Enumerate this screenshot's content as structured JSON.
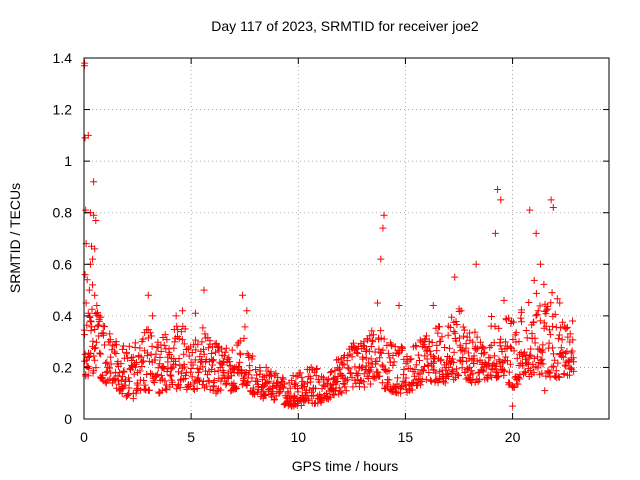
{
  "chart_data": {
    "type": "scatter",
    "title": "Day 117 of 2023, SRMTID for receiver joe2",
    "xlabel": "GPS time / hours",
    "ylabel": "SRMTID / TECUs",
    "xlim": [
      0,
      24.5
    ],
    "ylim": [
      0,
      1.4
    ],
    "grid": true,
    "x_ticks": [
      0,
      5,
      10,
      15,
      20
    ],
    "x_tick_labels": [
      "0",
      "5",
      "10",
      "15",
      "20"
    ],
    "y_ticks": [
      0,
      0.2,
      0.4,
      0.6,
      0.8,
      1.0,
      1.2,
      1.4
    ],
    "y_tick_labels": [
      "0",
      "0.2",
      "0.4",
      "0.6",
      "0.8",
      "1",
      "1.2",
      "1.4"
    ],
    "marker": "+",
    "color": "#ff0000",
    "series": [
      {
        "name": "SRMTID",
        "points": [
          [
            0.02,
            1.37
          ],
          [
            0.03,
            1.38
          ],
          [
            0.05,
            1.09
          ],
          [
            0.2,
            1.1
          ],
          [
            0.45,
            0.92
          ],
          [
            0.08,
            0.81
          ],
          [
            0.3,
            0.8
          ],
          [
            0.45,
            0.79
          ],
          [
            0.55,
            0.77
          ],
          [
            0.1,
            0.68
          ],
          [
            0.35,
            0.67
          ],
          [
            0.5,
            0.66
          ],
          [
            0.4,
            0.62
          ],
          [
            0.3,
            0.6
          ],
          [
            0.05,
            0.56
          ],
          [
            0.15,
            0.54
          ],
          [
            0.4,
            0.52
          ],
          [
            0.25,
            0.5
          ],
          [
            0.5,
            0.48
          ],
          [
            0.1,
            0.45
          ],
          [
            0.6,
            0.44
          ],
          [
            0.2,
            0.41
          ],
          [
            0.7,
            0.4
          ],
          [
            0.3,
            0.38
          ],
          [
            0.9,
            0.36
          ],
          [
            1.2,
            0.33
          ],
          [
            1.5,
            0.3
          ],
          [
            1.8,
            0.27
          ],
          [
            2.1,
            0.12
          ],
          [
            2.3,
            0.08
          ],
          [
            2.7,
            0.22
          ],
          [
            3.0,
            0.48
          ],
          [
            3.2,
            0.4
          ],
          [
            3.5,
            0.1
          ],
          [
            4.0,
            0.25
          ],
          [
            4.3,
            0.4
          ],
          [
            4.6,
            0.42
          ],
          [
            5.0,
            0.22
          ],
          [
            5.2,
            0.41
          ],
          [
            5.6,
            0.5
          ],
          [
            6.0,
            0.28
          ],
          [
            6.5,
            0.22
          ],
          [
            7.0,
            0.18
          ],
          [
            7.4,
            0.48
          ],
          [
            7.6,
            0.42
          ],
          [
            7.9,
            0.12
          ],
          [
            8.5,
            0.2
          ],
          [
            9.0,
            0.14
          ],
          [
            9.5,
            0.08
          ],
          [
            9.8,
            0.05
          ],
          [
            10.2,
            0.12
          ],
          [
            10.6,
            0.2
          ],
          [
            11.0,
            0.08
          ],
          [
            11.5,
            0.18
          ],
          [
            12.0,
            0.22
          ],
          [
            12.5,
            0.28
          ],
          [
            13.0,
            0.24
          ],
          [
            13.4,
            0.2
          ],
          [
            13.7,
            0.45
          ],
          [
            13.85,
            0.62
          ],
          [
            13.95,
            0.74
          ],
          [
            14.0,
            0.79
          ],
          [
            14.3,
            0.22
          ],
          [
            14.7,
            0.44
          ],
          [
            15.0,
            0.14
          ],
          [
            15.5,
            0.28
          ],
          [
            15.9,
            0.3
          ],
          [
            16.3,
            0.44
          ],
          [
            16.6,
            0.3
          ],
          [
            17.0,
            0.36
          ],
          [
            17.3,
            0.55
          ],
          [
            17.6,
            0.42
          ],
          [
            18.0,
            0.2
          ],
          [
            18.3,
            0.6
          ],
          [
            18.6,
            0.28
          ],
          [
            19.0,
            0.36
          ],
          [
            19.2,
            0.72
          ],
          [
            19.3,
            0.89
          ],
          [
            19.45,
            0.85
          ],
          [
            19.6,
            0.46
          ],
          [
            20.0,
            0.05
          ],
          [
            20.3,
            0.3
          ],
          [
            20.6,
            0.18
          ],
          [
            20.8,
            0.81
          ],
          [
            21.1,
            0.72
          ],
          [
            21.3,
            0.6
          ],
          [
            21.5,
            0.11
          ],
          [
            21.8,
            0.85
          ],
          [
            21.9,
            0.82
          ],
          [
            22.2,
            0.45
          ],
          [
            22.5,
            0.22
          ],
          [
            22.8,
            0.38
          ]
        ],
        "band": [
          [
            0.0,
            0.16,
            0.42
          ],
          [
            0.5,
            0.18,
            0.44
          ],
          [
            1.0,
            0.14,
            0.36
          ],
          [
            1.5,
            0.12,
            0.3
          ],
          [
            2.0,
            0.08,
            0.28
          ],
          [
            2.5,
            0.1,
            0.3
          ],
          [
            3.0,
            0.11,
            0.36
          ],
          [
            3.5,
            0.1,
            0.32
          ],
          [
            4.0,
            0.11,
            0.34
          ],
          [
            4.5,
            0.12,
            0.38
          ],
          [
            5.0,
            0.11,
            0.34
          ],
          [
            5.5,
            0.12,
            0.36
          ],
          [
            6.0,
            0.1,
            0.3
          ],
          [
            6.5,
            0.1,
            0.3
          ],
          [
            7.0,
            0.11,
            0.3
          ],
          [
            7.5,
            0.14,
            0.4
          ],
          [
            8.0,
            0.08,
            0.2
          ],
          [
            8.5,
            0.08,
            0.2
          ],
          [
            9.0,
            0.07,
            0.18
          ],
          [
            9.5,
            0.05,
            0.16
          ],
          [
            10.0,
            0.05,
            0.18
          ],
          [
            10.5,
            0.06,
            0.2
          ],
          [
            11.0,
            0.06,
            0.2
          ],
          [
            11.5,
            0.08,
            0.22
          ],
          [
            12.0,
            0.1,
            0.26
          ],
          [
            12.5,
            0.12,
            0.3
          ],
          [
            13.0,
            0.12,
            0.3
          ],
          [
            13.5,
            0.14,
            0.36
          ],
          [
            14.0,
            0.12,
            0.34
          ],
          [
            14.5,
            0.1,
            0.3
          ],
          [
            15.0,
            0.1,
            0.28
          ],
          [
            15.5,
            0.12,
            0.3
          ],
          [
            16.0,
            0.14,
            0.34
          ],
          [
            16.5,
            0.14,
            0.36
          ],
          [
            17.0,
            0.14,
            0.38
          ],
          [
            17.5,
            0.16,
            0.44
          ],
          [
            18.0,
            0.14,
            0.34
          ],
          [
            18.5,
            0.14,
            0.34
          ],
          [
            19.0,
            0.16,
            0.4
          ],
          [
            19.5,
            0.16,
            0.42
          ],
          [
            20.0,
            0.12,
            0.4
          ],
          [
            20.5,
            0.14,
            0.44
          ],
          [
            21.0,
            0.18,
            0.56
          ],
          [
            21.5,
            0.16,
            0.54
          ],
          [
            22.0,
            0.16,
            0.5
          ],
          [
            22.5,
            0.16,
            0.36
          ],
          [
            22.9,
            0.18,
            0.34
          ]
        ]
      }
    ]
  }
}
